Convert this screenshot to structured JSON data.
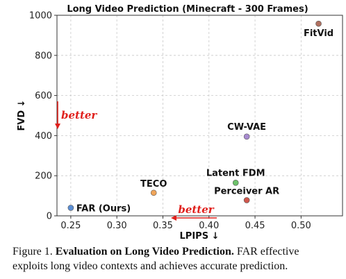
{
  "chart_data": {
    "type": "scatter",
    "title": "Long Video Prediction (Minecraft - 300 Frames)",
    "xlabel": "LPIPS ↓",
    "ylabel": "FVD ↓",
    "xlim": [
      0.235,
      0.545
    ],
    "ylim": [
      0,
      1000
    ],
    "xticks": [
      "0.25",
      "0.30",
      "0.35",
      "0.40",
      "0.45",
      "0.50"
    ],
    "yticks": [
      "0",
      "200",
      "400",
      "600",
      "800",
      "1000"
    ],
    "grid": true,
    "points": [
      {
        "label": "FAR (Ours)",
        "x": 0.25,
        "y": 40,
        "color": "#5b8fd6"
      },
      {
        "label": "TECO",
        "x": 0.34,
        "y": 115,
        "color": "#f0a55a"
      },
      {
        "label": "Latent FDM",
        "x": 0.429,
        "y": 165,
        "color": "#6cc26a"
      },
      {
        "label": "Perceiver AR",
        "x": 0.441,
        "y": 78,
        "color": "#d0574c"
      },
      {
        "label": "CW-VAE",
        "x": 0.441,
        "y": 395,
        "color": "#a88bd0"
      },
      {
        "label": "FitVid",
        "x": 0.519,
        "y": 958,
        "color": "#b07060"
      }
    ],
    "annotations": {
      "x_better": "better",
      "y_better": "better",
      "arrow_color": "#e0201c"
    }
  },
  "caption": {
    "figure_label": "Figure 1.",
    "bold_title": "Evaluation on Long Video Prediction.",
    "line1_rest": "FAR effective",
    "line2": "exploits long video contexts and achieves accurate prediction."
  }
}
